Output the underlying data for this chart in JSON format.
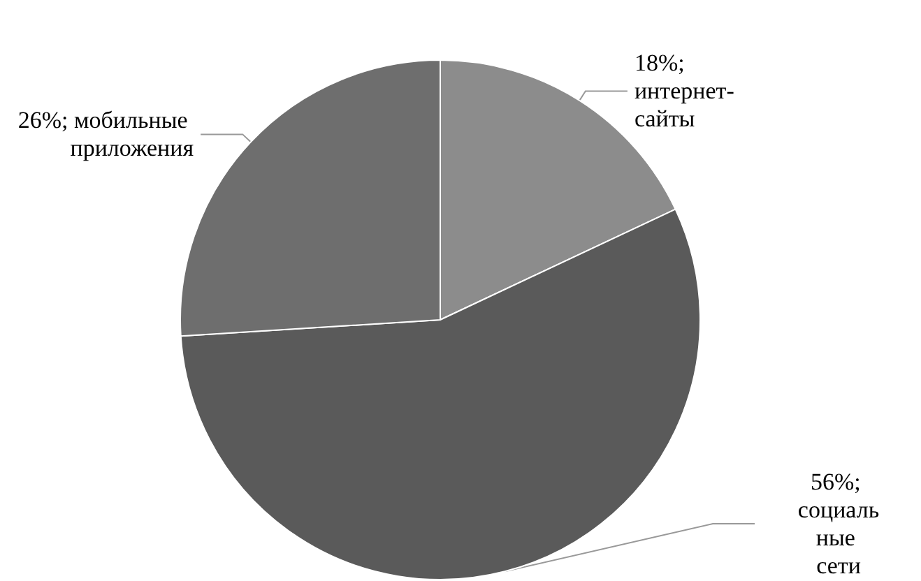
{
  "chart_data": {
    "type": "pie",
    "categories": [
      "интернет-сайты",
      "социальные сети",
      "мобильные приложения"
    ],
    "values": [
      18,
      56,
      26
    ],
    "colors": [
      "#8c8c8c",
      "#5a5a5a",
      "#6e6e6e"
    ],
    "value_labels": [
      "18%;",
      "56%;",
      "26%;"
    ],
    "legend": false
  }
}
